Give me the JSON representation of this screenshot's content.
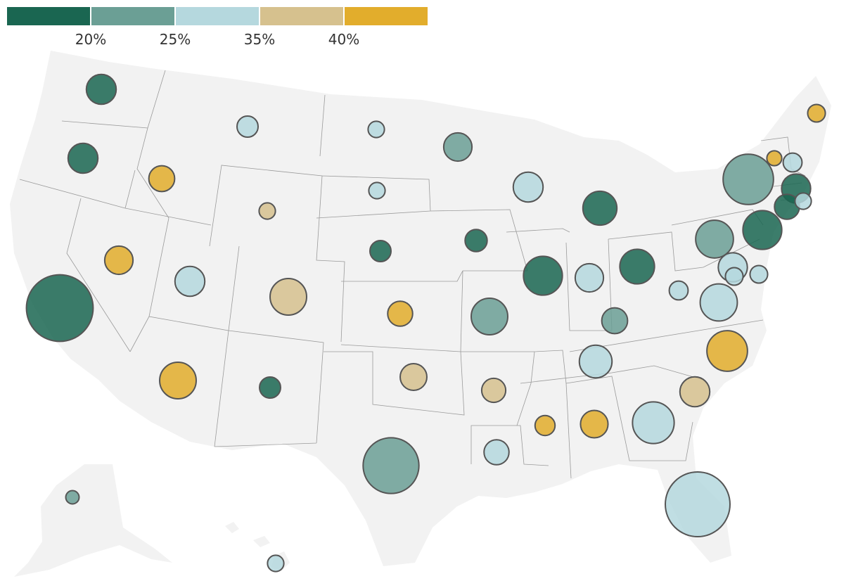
{
  "legend": {
    "colors": [
      "#1a6651",
      "#6b9f95",
      "#b5d8de",
      "#d6c18e",
      "#e2ad2c"
    ],
    "ticks": [
      "20%",
      "25%",
      "35%",
      "40%"
    ]
  },
  "states": [
    {
      "state": "WA",
      "bin": 0,
      "size": 2
    },
    {
      "state": "OR",
      "bin": 0,
      "size": 2
    },
    {
      "state": "CA",
      "bin": 0,
      "size": 10
    },
    {
      "state": "ID",
      "bin": 4,
      "size": 1.5
    },
    {
      "state": "NV",
      "bin": 4,
      "size": 1.8
    },
    {
      "state": "MT",
      "bin": 2,
      "size": 1
    },
    {
      "state": "WY",
      "bin": 3,
      "size": 0.6
    },
    {
      "state": "UT",
      "bin": 2,
      "size": 2
    },
    {
      "state": "AZ",
      "bin": 4,
      "size": 3
    },
    {
      "state": "CO",
      "bin": 3,
      "size": 3
    },
    {
      "state": "NM",
      "bin": 0,
      "size": 1
    },
    {
      "state": "ND",
      "bin": 2,
      "size": 0.6
    },
    {
      "state": "SD",
      "bin": 2,
      "size": 0.6
    },
    {
      "state": "NE",
      "bin": 0,
      "size": 1
    },
    {
      "state": "KS",
      "bin": 4,
      "size": 1.4
    },
    {
      "state": "OK",
      "bin": 3,
      "size": 1.6
    },
    {
      "state": "TX",
      "bin": 1,
      "size": 7
    },
    {
      "state": "MN",
      "bin": 1,
      "size": 1.8
    },
    {
      "state": "IA",
      "bin": 0,
      "size": 1.1
    },
    {
      "state": "MO",
      "bin": 1,
      "size": 3
    },
    {
      "state": "AR",
      "bin": 3,
      "size": 1.3
    },
    {
      "state": "LA",
      "bin": 2,
      "size": 1.4
    },
    {
      "state": "WI",
      "bin": 2,
      "size": 2
    },
    {
      "state": "IL",
      "bin": 0,
      "size": 3.4
    },
    {
      "state": "MI",
      "bin": 0,
      "size": 2.6
    },
    {
      "state": "IN",
      "bin": 2,
      "size": 1.8
    },
    {
      "state": "OH",
      "bin": 0,
      "size": 2.7
    },
    {
      "state": "KY",
      "bin": 1,
      "size": 1.5
    },
    {
      "state": "TN",
      "bin": 2,
      "size": 2.4
    },
    {
      "state": "MS",
      "bin": 4,
      "size": 0.9
    },
    {
      "state": "AL",
      "bin": 4,
      "size": 1.7
    },
    {
      "state": "GA",
      "bin": 2,
      "size": 3.9
    },
    {
      "state": "FL",
      "bin": 2,
      "size": 9.4
    },
    {
      "state": "SC",
      "bin": 3,
      "size": 2
    },
    {
      "state": "NC",
      "bin": 4,
      "size": 3.7
    },
    {
      "state": "VA",
      "bin": 2,
      "size": 3.1
    },
    {
      "state": "WV",
      "bin": 2,
      "size": 0.8
    },
    {
      "state": "PA",
      "bin": 1,
      "size": 3.2
    },
    {
      "state": "NY",
      "bin": 1,
      "size": 5.7
    },
    {
      "state": "NJ",
      "bin": 0,
      "size": 3.4
    },
    {
      "state": "MD",
      "bin": 2,
      "size": 1.9
    },
    {
      "state": "DE",
      "bin": 2,
      "size": 0.7
    },
    {
      "state": "DC",
      "bin": 2,
      "size": 0.7
    },
    {
      "state": "CT",
      "bin": 0,
      "size": 1.4
    },
    {
      "state": "RI",
      "bin": 2,
      "size": 0.6
    },
    {
      "state": "MA",
      "bin": 0,
      "size": 1.9
    },
    {
      "state": "VT",
      "bin": 4,
      "size": 0.5
    },
    {
      "state": "NH",
      "bin": 2,
      "size": 0.8
    },
    {
      "state": "ME",
      "bin": 4,
      "size": 0.7
    },
    {
      "state": "AK",
      "bin": 1,
      "size": 0.4
    },
    {
      "state": "HI",
      "bin": 2,
      "size": 0.6
    }
  ]
}
